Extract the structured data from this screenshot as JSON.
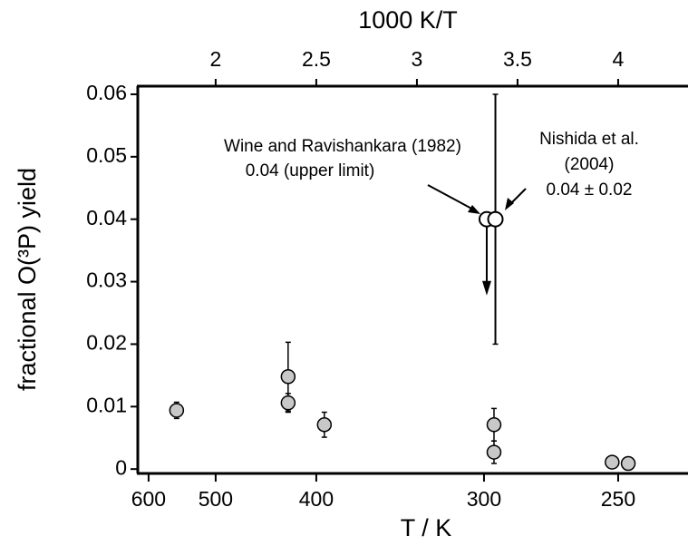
{
  "chart_data": {
    "type": "scatter",
    "top_axis_label": "1000 K/T",
    "bottom_axis_label": "T / K",
    "ylabel": "fractional O(³P) yield",
    "xlim": [
      1.613,
      4.347
    ],
    "xticks": [
      2,
      2.5,
      3,
      3.5,
      4
    ],
    "x2ticks": [
      600,
      500,
      400,
      300,
      250
    ],
    "ylim": [
      -0.0007,
      0.0613
    ],
    "yticks": [
      0,
      0.01,
      0.02,
      0.03,
      0.04,
      0.05,
      0.06
    ],
    "annotations": [
      "Wine and Ravishankara (1982)",
      "0.04 (upper limit)",
      "Nishida et al.",
      "(2004)",
      "0.04 ± 0.02"
    ],
    "series": [
      {
        "marker": "filled",
        "color": "#c8c8c8",
        "x": [
          1.806,
          2.36,
          2.36,
          2.54,
          3.383,
          3.383,
          3.97,
          4.05
        ],
        "values": [
          0.0094,
          0.0148,
          0.0106,
          0.0071,
          0.0071,
          0.0027,
          0.0011,
          0.0009
        ],
        "errors": [
          0.0013,
          0.0055,
          0.0015,
          0.002,
          0.0026,
          0.0018,
          null,
          null
        ]
      },
      {
        "marker": "open",
        "color": "#ffffff",
        "x": [
          3.347
        ],
        "values": [
          0.04
        ],
        "upper_limit": true
      },
      {
        "marker": "open",
        "color": "#ffffff",
        "x": [
          3.39
        ],
        "values": [
          0.04
        ],
        "errors": [
          0.02
        ]
      }
    ]
  }
}
